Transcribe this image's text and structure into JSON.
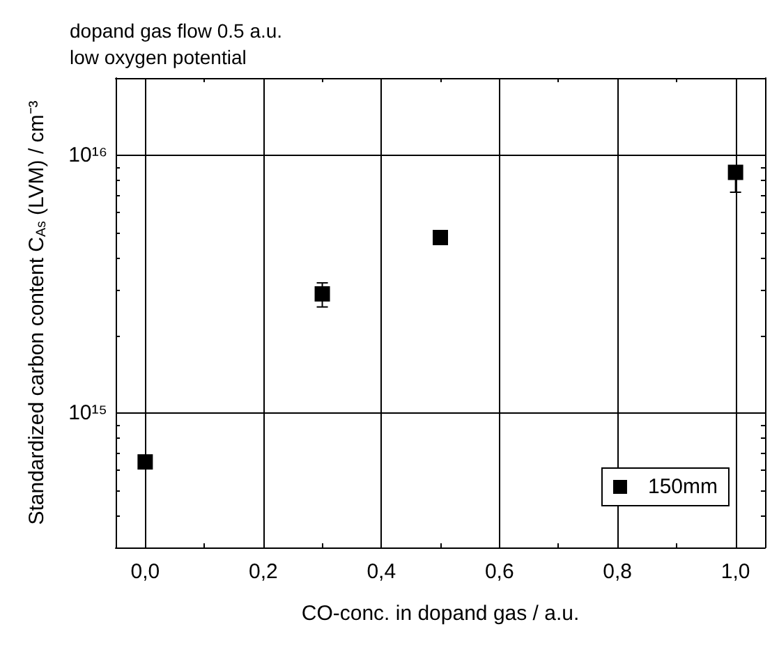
{
  "chart_data": {
    "type": "scatter",
    "title": "dopand gas flow 0.5 a.u.",
    "subtitle": "low oxygen potential",
    "xlabel": "CO-conc. in dopand gas / a.u.",
    "ylabel": "Standardized carbon content C$_{As}$ (LVM) / cm⁻³",
    "x": [
      0,
      0.3,
      0.5,
      1.0
    ],
    "series": [
      {
        "name": "150mm",
        "color": "#000000",
        "values": [
          645000000000000.0,
          2900000000000000.0,
          4800000000000000.0,
          8600000000000000.0
        ],
        "errors": [
          null,
          [
            2580000000000000.0,
            3200000000000000.0
          ],
          null,
          [
            7200000000000000.0,
            8600000000000000.0
          ]
        ]
      }
    ],
    "xlim": [
      -0.05,
      1.05
    ],
    "ylim": [
      300000000000000.0,
      2e+16
    ],
    "xticks": [
      {
        "value": 0,
        "label": "0,0"
      },
      {
        "value": 0.2,
        "label": "0,2"
      },
      {
        "value": 0.4,
        "label": "0,4"
      },
      {
        "value": 0.6,
        "label": "0,6"
      },
      {
        "value": 0.8,
        "label": "0,8"
      },
      {
        "value": 1.0,
        "label": "1,0"
      }
    ],
    "yticks": [
      {
        "value": 1000000000000000.0,
        "label": "10¹⁵"
      },
      {
        "value": 1e+16,
        "label": "10¹⁶"
      }
    ],
    "log": "y",
    "grid": true,
    "legend": "bottom right",
    "marker": "square"
  }
}
